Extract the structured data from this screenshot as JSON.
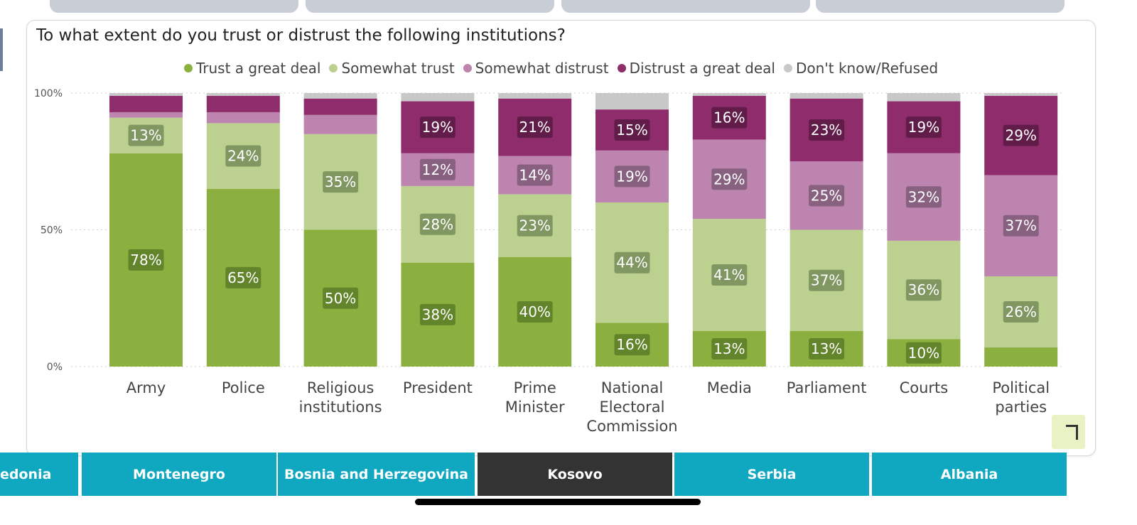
{
  "chart_data": {
    "type": "stacked-bar",
    "title": "To what extent do you trust or distrust the following institutions?",
    "ylim": [
      0,
      100
    ],
    "y_ticks": [
      "0%",
      "50%",
      "100%"
    ],
    "legend_position": "top-center",
    "grid": true,
    "categories": [
      "Army",
      "Police",
      "Religious institutions",
      "President",
      "Prime Minister",
      "National Electoral Commission",
      "Media",
      "Parliament",
      "Courts",
      "Political parties"
    ],
    "category_lines": [
      [
        "Army"
      ],
      [
        "Police"
      ],
      [
        "Religious",
        "institutions"
      ],
      [
        "President"
      ],
      [
        "Prime",
        "Minister"
      ],
      [
        "National",
        "Electoral",
        "Commission"
      ],
      [
        "Media"
      ],
      [
        "Parliament"
      ],
      [
        "Courts"
      ],
      [
        "Political",
        "parties"
      ]
    ],
    "series": [
      {
        "name": "Trust a great deal",
        "color": "#8cb03f",
        "label_bg": "#5a7d28",
        "values": [
          78,
          65,
          50,
          38,
          40,
          16,
          13,
          13,
          10,
          7
        ],
        "labels": [
          "78%",
          "65%",
          "50%",
          "38%",
          "40%",
          "16%",
          "13%",
          "13%",
          "10%",
          ""
        ]
      },
      {
        "name": "Somewhat trust",
        "color": "#bcd08f",
        "label_bg": "#758d5a",
        "values": [
          13,
          24,
          35,
          28,
          23,
          44,
          41,
          37,
          36,
          26
        ],
        "labels": [
          "13%",
          "24%",
          "35%",
          "28%",
          "23%",
          "44%",
          "41%",
          "37%",
          "36%",
          "26%"
        ]
      },
      {
        "name": "Somewhat distrust",
        "color": "#bc84ae",
        "label_bg": "#7f5a78",
        "values": [
          2,
          4,
          7,
          12,
          14,
          19,
          29,
          25,
          32,
          37
        ],
        "labels": [
          "",
          "",
          "",
          "12%",
          "14%",
          "19%",
          "29%",
          "25%",
          "32%",
          "37%"
        ]
      },
      {
        "name": "Distrust a great deal",
        "color": "#8f2c6b",
        "label_bg": "#5a1a43",
        "values": [
          6,
          6,
          6,
          19,
          21,
          15,
          16,
          23,
          19,
          29
        ],
        "labels": [
          "",
          "",
          "",
          "19%",
          "21%",
          "15%",
          "16%",
          "23%",
          "19%",
          "29%"
        ]
      },
      {
        "name": "Don't know/Refused",
        "color": "#c8c8c8",
        "label_bg": "#888888",
        "values": [
          1,
          1,
          2,
          3,
          2,
          6,
          1,
          2,
          3,
          1
        ],
        "labels": [
          "",
          "",
          "",
          "",
          "",
          "",
          "",
          "",
          "",
          ""
        ]
      }
    ]
  },
  "country_tabs": [
    {
      "label": "edonia",
      "active": false
    },
    {
      "label": "Montenegro",
      "active": false
    },
    {
      "label": "Bosnia and Herzegovina",
      "active": false
    },
    {
      "label": "Kosovo",
      "active": true
    },
    {
      "label": "Serbia",
      "active": false
    },
    {
      "label": "Albania",
      "active": false
    }
  ],
  "colors": {
    "tab": "#10a8c0",
    "tab_active": "#333333"
  }
}
